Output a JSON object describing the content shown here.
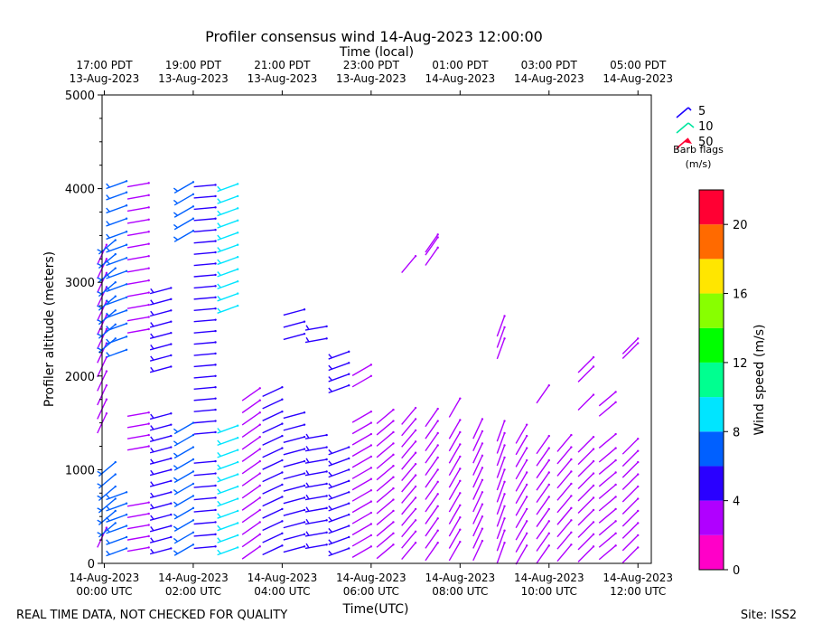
{
  "chart_data": {
    "type": "wind-barb",
    "title": "Profiler consensus wind 14-Aug-2023 12:00:00",
    "xlabel": "Time(UTC)",
    "ylabel": "Profiler altitude (meters)",
    "top_axis_label": "Time (local)",
    "x_range_hours_utc": [
      -0.05,
      12.3
    ],
    "ylim": [
      0,
      5000
    ],
    "y_ticks": [
      0,
      1000,
      2000,
      3000,
      4000,
      5000
    ],
    "y_tick_labels": [
      "0",
      "1000",
      "2000",
      "3000",
      "4000",
      "5000"
    ],
    "x_ticks_utc_hours": [
      0,
      2,
      4,
      6,
      8,
      10,
      12
    ],
    "x_tick_labels": [
      {
        "time": "14-Aug-2023",
        "zone": "00:00 UTC"
      },
      {
        "time": "14-Aug-2023",
        "zone": "02:00 UTC"
      },
      {
        "time": "14-Aug-2023",
        "zone": "04:00 UTC"
      },
      {
        "time": "14-Aug-2023",
        "zone": "06:00 UTC"
      },
      {
        "time": "14-Aug-2023",
        "zone": "08:00 UTC"
      },
      {
        "time": "14-Aug-2023",
        "zone": "10:00 UTC"
      },
      {
        "time": "14-Aug-2023",
        "zone": "12:00 UTC"
      }
    ],
    "top_ticks_utc_hours": [
      0,
      2,
      4,
      6,
      8,
      10,
      12
    ],
    "top_tick_labels": [
      {
        "time": "17:00 PDT",
        "date": "13-Aug-2023"
      },
      {
        "time": "19:00 PDT",
        "date": "13-Aug-2023"
      },
      {
        "time": "21:00 PDT",
        "date": "13-Aug-2023"
      },
      {
        "time": "23:00 PDT",
        "date": "13-Aug-2023"
      },
      {
        "time": "01:00 PDT",
        "date": "14-Aug-2023"
      },
      {
        "time": "03:00 PDT",
        "date": "14-Aug-2023"
      },
      {
        "time": "05:00 PDT",
        "date": "14-Aug-2023"
      }
    ],
    "barb_legend": {
      "entries": [
        {
          "label": "5",
          "speed": 5,
          "color": "#1a00ff"
        },
        {
          "label": "10",
          "speed": 10,
          "color": "#00e6a0"
        },
        {
          "label": "50",
          "speed": 50,
          "color": "#ff0033"
        }
      ],
      "title_line1": "Barb flags",
      "title_line2": "(m/s)"
    },
    "colorbar": {
      "label": "Wind speed (m/s)",
      "range": [
        0,
        22
      ],
      "ticks": [
        0,
        4,
        8,
        12,
        16,
        20
      ],
      "tick_labels": [
        "0",
        "4",
        "8",
        "12",
        "16",
        "20"
      ],
      "bins": [
        {
          "from": 0,
          "to": 2,
          "color": "#ff00c8"
        },
        {
          "from": 2,
          "to": 4,
          "color": "#b000ff"
        },
        {
          "from": 4,
          "to": 6,
          "color": "#2a00ff"
        },
        {
          "from": 6,
          "to": 8,
          "color": "#0060ff"
        },
        {
          "from": 8,
          "to": 10,
          "color": "#00e5ff"
        },
        {
          "from": 10,
          "to": 12,
          "color": "#00ff90"
        },
        {
          "from": 12,
          "to": 14,
          "color": "#00ff00"
        },
        {
          "from": 14,
          "to": 16,
          "color": "#88ff00"
        },
        {
          "from": 16,
          "to": 18,
          "color": "#ffe600"
        },
        {
          "from": 18,
          "to": 20,
          "color": "#ff6a00"
        },
        {
          "from": 20,
          "to": 22,
          "color": "#ff0033"
        }
      ]
    },
    "series": [
      {
        "time": 0.05,
        "altitudes": [
          380,
          1600,
          1750,
          1900,
          2050,
          2200,
          2350,
          2500,
          2650,
          2800,
          2950,
          3100,
          3250,
          3400
        ],
        "speed": 3,
        "direction": 205
      },
      {
        "time": 0.25,
        "altitudes": [
          430,
          560,
          690,
          820,
          950,
          1080,
          2400,
          2550,
          2700,
          2850,
          3000,
          3150,
          3300,
          3450
        ],
        "speed": 7,
        "direction": 230
      },
      {
        "time": 0.5,
        "altitudes": [
          160,
          280,
          400,
          520,
          640,
          760,
          2280,
          2420,
          2560,
          2700,
          2840,
          2980,
          3120,
          3260,
          3400,
          3540,
          3680,
          3820,
          3960,
          4080
        ],
        "speed": 6,
        "direction": 250
      },
      {
        "time": 1.0,
        "altitudes": [
          170,
          290,
          410,
          530,
          650,
          1250,
          1370,
          1490,
          1610,
          2500,
          2630,
          2760,
          2890,
          3020,
          3150,
          3280,
          3410,
          3540,
          3670,
          3800,
          3930,
          4060
        ],
        "speed": 3,
        "direction": 260
      },
      {
        "time": 1.5,
        "altitudes": [
          160,
          280,
          400,
          520,
          640,
          760,
          880,
          1000,
          1120,
          1240,
          1360,
          1480,
          1600,
          2100,
          2220,
          2340,
          2460,
          2580,
          2700,
          2820,
          2940
        ],
        "speed": 5,
        "direction": 255
      },
      {
        "time": 2.0,
        "altitudes": [
          200,
          330,
          460,
          590,
          720,
          850,
          980,
          1110,
          1240,
          1370,
          1500,
          3550,
          3680,
          3810,
          3940,
          4070
        ],
        "speed": 7,
        "direction": 240
      },
      {
        "time": 2.5,
        "altitudes": [
          180,
          310,
          440,
          570,
          700,
          830,
          960,
          1090,
          1400,
          1520,
          1640,
          1760,
          1880,
          2000,
          2120,
          2240,
          2360,
          2480,
          2600,
          2720,
          2840,
          2960,
          3080,
          3200,
          3320,
          3440,
          3560,
          3680,
          3800,
          3920,
          4040
        ],
        "speed": 4,
        "direction": 265
      },
      {
        "time": 3.0,
        "altitudes": [
          170,
          300,
          430,
          560,
          690,
          820,
          950,
          1080,
          1210,
          1340,
          1470,
          2750,
          2880,
          3010,
          3140,
          3270,
          3400,
          3530,
          3660,
          3790,
          3920,
          4050
        ],
        "speed": 9,
        "direction": 250
      },
      {
        "time": 3.5,
        "altitudes": [
          180,
          310,
          440,
          570,
          700,
          830,
          960,
          1090,
          1220,
          1350,
          1480,
          1610,
          1740,
          1870
        ],
        "speed": 3,
        "direction": 235
      },
      {
        "time": 4.0,
        "altitudes": [
          190,
          320,
          450,
          580,
          710,
          840,
          970,
          1100,
          1230,
          1360,
          1490,
          1620,
          1750,
          1880
        ],
        "speed": 4,
        "direction": 245
      },
      {
        "time": 4.5,
        "altitudes": [
          180,
          310,
          440,
          570,
          700,
          830,
          960,
          1090,
          1220,
          1350,
          1480,
          1610,
          2450,
          2580,
          2710
        ],
        "speed": 4,
        "direction": 255
      },
      {
        "time": 5.0,
        "altitudes": [
          200,
          330,
          460,
          590,
          720,
          850,
          980,
          1110,
          1240,
          1370,
          2400,
          2530
        ],
        "speed": 5,
        "direction": 260
      },
      {
        "time": 5.5,
        "altitudes": [
          160,
          280,
          400,
          520,
          640,
          760,
          880,
          1000,
          1120,
          1240,
          1900,
          2020,
          2140,
          2260
        ],
        "speed": 5,
        "direction": 250
      },
      {
        "time": 6.0,
        "altitudes": [
          180,
          300,
          420,
          540,
          660,
          780,
          900,
          1020,
          1140,
          1260,
          1380,
          1500,
          1620,
          2000,
          2120
        ],
        "speed": 3,
        "direction": 240
      },
      {
        "time": 6.5,
        "altitudes": [
          200,
          320,
          440,
          560,
          680,
          800,
          920,
          1040,
          1160,
          1280,
          1400,
          1520,
          1640
        ],
        "speed": 2,
        "direction": 230
      },
      {
        "time": 7.0,
        "altitudes": [
          220,
          340,
          460,
          580,
          700,
          820,
          940,
          1060,
          1180,
          1300,
          1420,
          1540,
          1660,
          3280
        ],
        "speed": 2,
        "direction": 220
      },
      {
        "time": 7.5,
        "altitudes": [
          220,
          350,
          480,
          610,
          740,
          870,
          1000,
          1130,
          1260,
          1390,
          1520,
          1650,
          3370,
          3480,
          3510
        ],
        "speed": 2,
        "direction": 215
      },
      {
        "time": 8.0,
        "altitudes": [
          230,
          360,
          490,
          620,
          750,
          880,
          1010,
          1140,
          1270,
          1400,
          1530,
          1760
        ],
        "speed": 3,
        "direction": 210
      },
      {
        "time": 8.5,
        "altitudes": [
          240,
          370,
          500,
          630,
          760,
          890,
          1020,
          1150,
          1280,
          1410,
          1540
        ],
        "speed": 3,
        "direction": 205
      },
      {
        "time": 9.0,
        "altitudes": [
          220,
          350,
          480,
          610,
          740,
          870,
          1000,
          1130,
          1260,
          1390,
          1520,
          2400,
          2520,
          2640
        ],
        "speed": 3,
        "direction": 200
      },
      {
        "time": 9.5,
        "altitudes": [
          190,
          320,
          450,
          580,
          710,
          840,
          970,
          1100,
          1230,
          1360,
          1480
        ],
        "speed": 2,
        "direction": 210
      },
      {
        "time": 10.0,
        "altitudes": [
          190,
          320,
          450,
          580,
          710,
          840,
          970,
          1100,
          1230,
          1360,
          1900
        ],
        "speed": 2,
        "direction": 215
      },
      {
        "time": 10.5,
        "altitudes": [
          200,
          330,
          460,
          590,
          720,
          850,
          980,
          1110,
          1240,
          1370
        ],
        "speed": 2,
        "direction": 220
      },
      {
        "time": 11.0,
        "altitudes": [
          180,
          310,
          440,
          570,
          700,
          830,
          960,
          1090,
          1220,
          1350,
          1800,
          2100,
          2200
        ],
        "speed": 3,
        "direction": 225
      },
      {
        "time": 11.5,
        "altitudes": [
          190,
          320,
          450,
          580,
          710,
          840,
          970,
          1100,
          1230,
          1380,
          1720,
          1830
        ],
        "speed": 3,
        "direction": 230
      },
      {
        "time": 12.0,
        "altitudes": [
          170,
          300,
          430,
          560,
          690,
          820,
          950,
          1080,
          1200,
          1330,
          2350,
          2400
        ],
        "speed": 3,
        "direction": 225
      }
    ]
  },
  "footer": {
    "left_note": "REAL TIME DATA, NOT CHECKED FOR QUALITY",
    "site": "Site: ISS2"
  }
}
